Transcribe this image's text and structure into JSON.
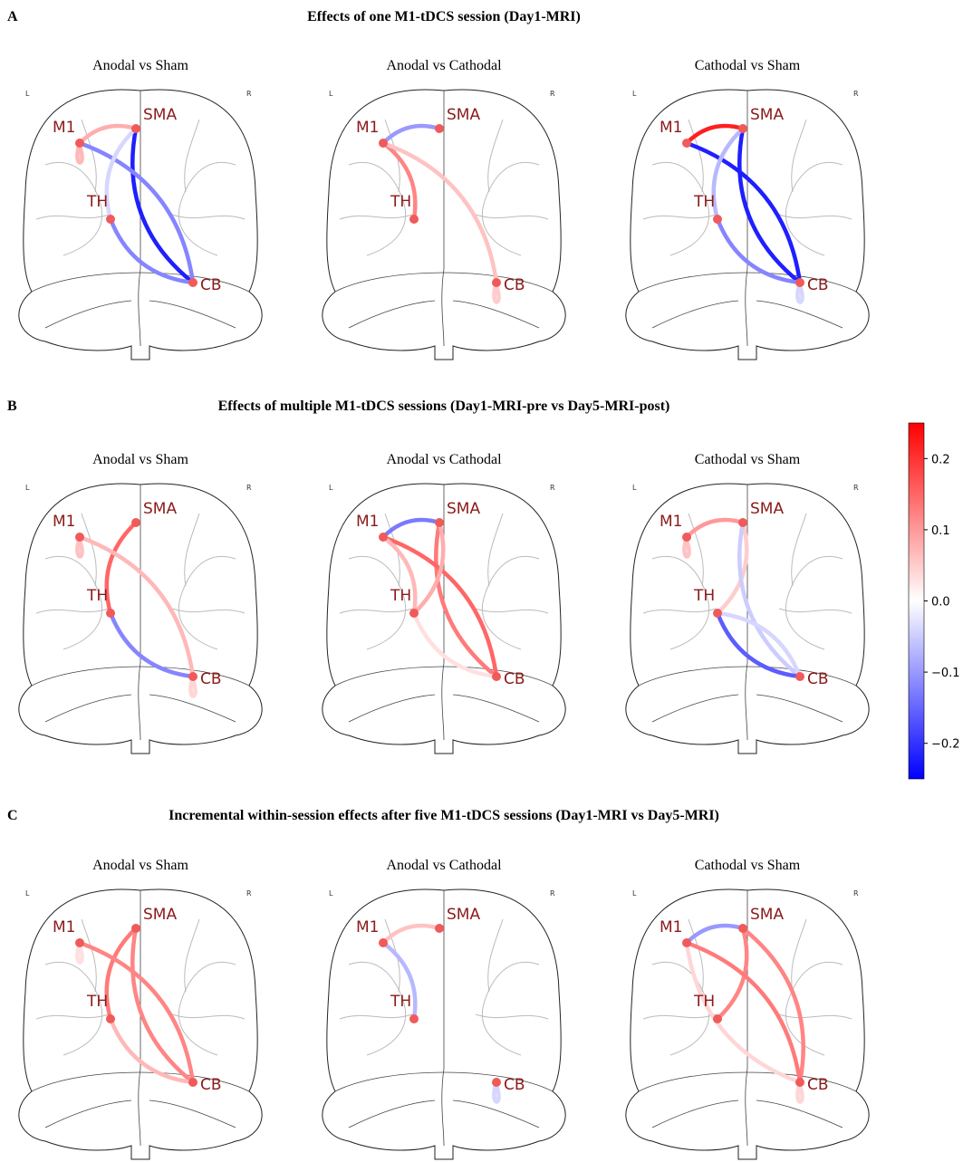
{
  "hemisphere_labels": [
    "L",
    "R"
  ],
  "nodes": [
    "M1",
    "SMA",
    "TH",
    "CB"
  ],
  "colorbar": {
    "lim": [
      -0.25,
      0.25
    ],
    "ticks": [
      {
        "value": -0.2,
        "label": "−0.2"
      },
      {
        "value": -0.1,
        "label": "−0.1"
      },
      {
        "value": 0,
        "label": "0.0"
      },
      0.1,
      0.2
    ]
  },
  "sections": [
    {
      "letter": "A",
      "title": "Effects of one M1-tDCS session (Day1-MRI)",
      "panels": [
        {
          "title": "Anodal vs Sham",
          "edges": [
            {
              "from": "SMA",
              "to": "M1",
              "value": 0.08
            },
            {
              "from": "M1",
              "to": "M1",
              "value": 0.07
            },
            {
              "from": "SMA",
              "to": "CB",
              "value": -0.22
            },
            {
              "from": "CB",
              "to": "M1",
              "value": -0.12
            },
            {
              "from": "TH",
              "to": "CB",
              "value": -0.12
            },
            {
              "from": "SMA",
              "to": "TH",
              "value": -0.04
            }
          ]
        },
        {
          "title": "Anodal vs Cathodal",
          "edges": [
            {
              "from": "SMA",
              "to": "M1",
              "value": -0.1
            },
            {
              "from": "TH",
              "to": "M1",
              "value": 0.12
            },
            {
              "from": "CB",
              "to": "M1",
              "value": 0.06
            },
            {
              "from": "CB",
              "to": "CB",
              "value": 0.05
            }
          ]
        },
        {
          "title": "Cathodal vs Sham",
          "edges": [
            {
              "from": "SMA",
              "to": "M1",
              "value": 0.22
            },
            {
              "from": "CB",
              "to": "M1",
              "value": -0.22
            },
            {
              "from": "SMA",
              "to": "CB",
              "value": -0.22
            },
            {
              "from": "SMA",
              "to": "TH",
              "value": -0.07
            },
            {
              "from": "TH",
              "to": "CB",
              "value": -0.12
            },
            {
              "from": "CB",
              "to": "CB",
              "value": -0.04
            }
          ]
        }
      ]
    },
    {
      "letter": "B",
      "title": "Effects of multiple M1-tDCS sessions (Day1-MRI-pre vs Day5-MRI-post)",
      "panels": [
        {
          "title": "Anodal vs Sham",
          "edges": [
            {
              "from": "M1",
              "to": "M1",
              "value": 0.06
            },
            {
              "from": "SMA",
              "to": "TH",
              "value": 0.15
            },
            {
              "from": "CB",
              "to": "M1",
              "value": 0.07
            },
            {
              "from": "TH",
              "to": "CB",
              "value": -0.12
            },
            {
              "from": "CB",
              "to": "CB",
              "value": 0.04
            }
          ]
        },
        {
          "title": "Anodal vs Cathodal",
          "edges": [
            {
              "from": "SMA",
              "to": "M1",
              "value": -0.13
            },
            {
              "from": "SMA",
              "to": "CB",
              "value": 0.13
            },
            {
              "from": "CB",
              "to": "M1",
              "value": 0.15
            },
            {
              "from": "TH",
              "to": "M1",
              "value": 0.07
            },
            {
              "from": "TH",
              "to": "SMA",
              "value": 0.08
            },
            {
              "from": "TH",
              "to": "CB",
              "value": 0.03
            }
          ]
        },
        {
          "title": "Cathodal vs Sham",
          "edges": [
            {
              "from": "SMA",
              "to": "M1",
              "value": 0.1
            },
            {
              "from": "M1",
              "to": "M1",
              "value": 0.06
            },
            {
              "from": "TH",
              "to": "SMA",
              "value": 0.05
            },
            {
              "from": "SMA",
              "to": "CB",
              "value": -0.05
            },
            {
              "from": "CB",
              "to": "TH",
              "value": -0.04
            },
            {
              "from": "TH",
              "to": "CB",
              "value": -0.16
            }
          ]
        }
      ]
    },
    {
      "letter": "C",
      "title": "Incremental within-session effects after five M1-tDCS sessions (Day1-MRI vs Day5-MRI)",
      "panels": [
        {
          "title": "Anodal vs Sham",
          "edges": [
            {
              "from": "M1",
              "to": "M1",
              "value": 0.03
            },
            {
              "from": "SMA",
              "to": "TH",
              "value": 0.13
            },
            {
              "from": "SMA",
              "to": "CB",
              "value": 0.12
            },
            {
              "from": "CB",
              "to": "M1",
              "value": 0.12
            },
            {
              "from": "TH",
              "to": "CB",
              "value": 0.07
            }
          ]
        },
        {
          "title": "Anodal vs Cathodal",
          "edges": [
            {
              "from": "SMA",
              "to": "M1",
              "value": 0.06
            },
            {
              "from": "TH",
              "to": "M1",
              "value": -0.07
            },
            {
              "from": "CB",
              "to": "CB",
              "value": -0.04
            }
          ]
        },
        {
          "title": "Cathodal vs Sham",
          "edges": [
            {
              "from": "SMA",
              "to": "M1",
              "value": -0.1
            },
            {
              "from": "TH",
              "to": "SMA",
              "value": 0.12
            },
            {
              "from": "CB",
              "to": "SMA",
              "value": 0.12
            },
            {
              "from": "CB",
              "to": "M1",
              "value": 0.13
            },
            {
              "from": "M1",
              "to": "CB",
              "value": 0.04
            },
            {
              "from": "CB",
              "to": "CB",
              "value": 0.04
            }
          ]
        }
      ]
    }
  ]
}
